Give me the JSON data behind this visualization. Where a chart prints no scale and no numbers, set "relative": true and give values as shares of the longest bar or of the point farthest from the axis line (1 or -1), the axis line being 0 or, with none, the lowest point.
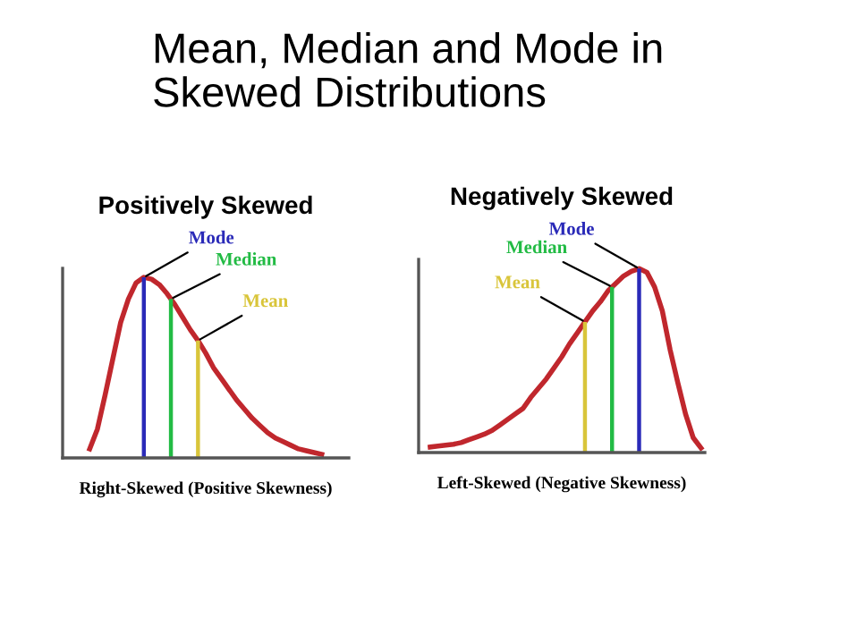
{
  "chart_data": [
    {
      "type": "line",
      "title": "Positively Skewed",
      "xlabel": "Right-Skewed (Positive Skewness)",
      "relative": true,
      "annotations": [
        "Mean, Median and Mode in Skewed Distributions",
        "Mode",
        "Median",
        "Mean"
      ],
      "categories": [
        null,
        null,
        null,
        null,
        null,
        null,
        null,
        null,
        null,
        null,
        null,
        null,
        null,
        null,
        null,
        null,
        null,
        null,
        null,
        null,
        null,
        null,
        null,
        null,
        null,
        null,
        null,
        null,
        null,
        null,
        null,
        null,
        null,
        null,
        null,
        null,
        null
      ],
      "series": [
        {
          "color": "#c0272d",
          "values": [
            null,
            null,
            null,
            0.05,
            0.16,
            0.35,
            0.55,
            0.75,
            0.88,
            0.97,
            1,
            0.99,
            0.96,
            0.91,
            0.85,
            0.78,
            0.71,
            0.65,
            0.58,
            0.5,
            0.44,
            0.38,
            0.32,
            0.27,
            0.22,
            0.18,
            0.14,
            0.11,
            0.09,
            0.07,
            0.05,
            0.04,
            0.03,
            0.02,
            null,
            null,
            null
          ]
        }
      ]
    },
    {
      "type": "line",
      "title": "Negatively Skewed",
      "xlabel": "Left-Skewed (Negative Skewness)",
      "relative": true,
      "annotations": [
        "Mode",
        "Median",
        "Mean"
      ],
      "categories": [
        null,
        null,
        null,
        null,
        null,
        null,
        null,
        null,
        null,
        null,
        null,
        null,
        null,
        null,
        null,
        null,
        null,
        null,
        null,
        null,
        null,
        null,
        null,
        null,
        null,
        null,
        null,
        null,
        null,
        null,
        null,
        null,
        null,
        null,
        null,
        null,
        null
      ],
      "series": [
        {
          "color": "#c0272d",
          "values": [
            null,
            0.03,
            0.035,
            0.04,
            0.045,
            0.054,
            0.07,
            0.085,
            0.1,
            0.12,
            0.15,
            0.18,
            0.21,
            0.24,
            0.3,
            0.35,
            0.4,
            0.46,
            0.52,
            0.59,
            0.65,
            0.71,
            0.77,
            0.82,
            0.88,
            0.92,
            0.96,
            0.985,
            1,
            0.98,
            0.9,
            0.77,
            0.56,
            0.38,
            0.21,
            0.08,
            0.025
          ]
        }
      ]
    }
  ]
}
